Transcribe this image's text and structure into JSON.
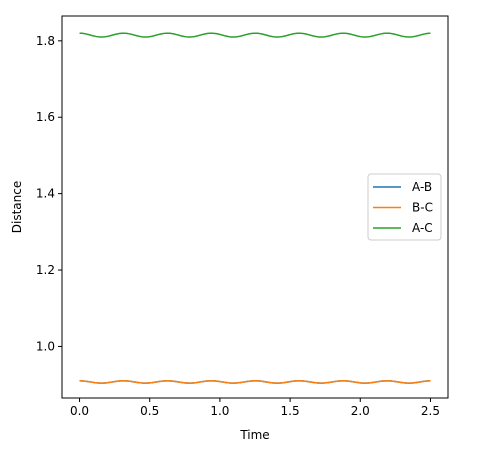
{
  "chart_data": {
    "type": "line",
    "title": "",
    "xlabel": "Time",
    "ylabel": "Distance",
    "xlim": [
      -0.125,
      2.625
    ],
    "ylim": [
      0.865,
      1.865
    ],
    "xticks": [
      0.0,
      0.5,
      1.0,
      1.5,
      2.0,
      2.5
    ],
    "xtick_labels": [
      "0.0",
      "0.5",
      "1.0",
      "1.5",
      "2.0",
      "2.5"
    ],
    "yticks": [
      1.0,
      1.2,
      1.4,
      1.6,
      1.8
    ],
    "ytick_labels": [
      "1.0",
      "1.2",
      "1.4",
      "1.6",
      "1.8"
    ],
    "grid": false,
    "legend": "center-right",
    "series": [
      {
        "name": "A-B",
        "color": "#1f77b4",
        "x_start": 0.0,
        "x_end": 2.5,
        "mean": 0.907,
        "amplitude": 0.003,
        "period": 0.313,
        "phase": 0.0
      },
      {
        "name": "B-C",
        "color": "#ff7f0e",
        "x_start": 0.0,
        "x_end": 2.5,
        "mean": 0.907,
        "amplitude": 0.003,
        "period": 0.313,
        "phase": 0.0
      },
      {
        "name": "A-C",
        "color": "#2ca02c",
        "x_start": 0.0,
        "x_end": 2.5,
        "mean": 1.815,
        "amplitude": 0.005,
        "period": 0.313,
        "phase": 0.0
      }
    ]
  }
}
